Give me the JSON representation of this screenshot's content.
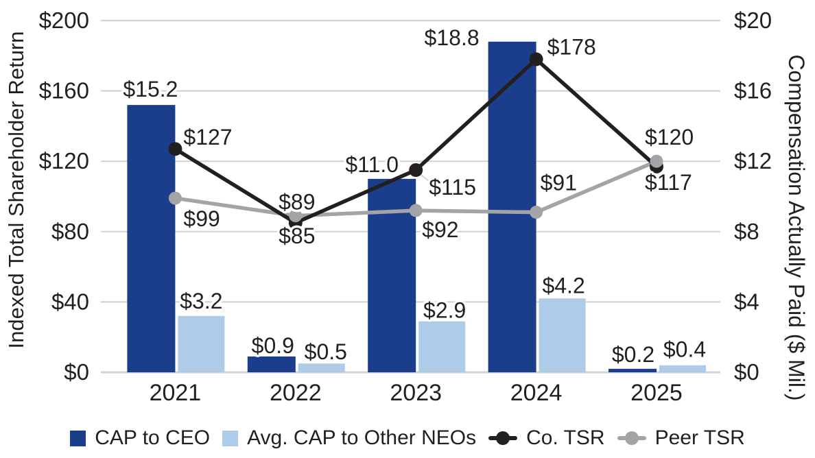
{
  "chart_data": {
    "type": "combo-bar-line",
    "categories": [
      "2021",
      "2022",
      "2023",
      "2024",
      "2025"
    ],
    "series": [
      {
        "name": "CAP to CEO",
        "kind": "bar",
        "axis": "right",
        "color": "#1B3E8C",
        "values": [
          15.2,
          0.9,
          11.0,
          18.8,
          0.2
        ],
        "labels": [
          "$15.2",
          "$0.9",
          "$11.0",
          "$18.8",
          "$0.2"
        ]
      },
      {
        "name": "Avg. CAP to Other NEOs",
        "kind": "bar",
        "axis": "right",
        "color": "#AECBE8",
        "values": [
          3.2,
          0.5,
          2.9,
          4.2,
          0.4
        ],
        "labels": [
          "$3.2",
          "$0.5",
          "$2.9",
          "$4.2",
          "$0.4"
        ]
      },
      {
        "name": "Co. TSR",
        "kind": "line",
        "axis": "left",
        "color": "#231F20",
        "values": [
          127,
          85,
          115,
          178,
          117
        ],
        "labels": [
          "$127",
          "$85",
          "$115",
          "$178",
          "$117"
        ]
      },
      {
        "name": "Peer TSR",
        "kind": "line",
        "axis": "left",
        "color": "#A2A4A7",
        "values": [
          99,
          89,
          92,
          91,
          120
        ],
        "labels": [
          "$99",
          "$89",
          "$92",
          "$91",
          "$120"
        ]
      }
    ],
    "left_axis": {
      "label": "Indexed Total Shareholder Return",
      "min": 0,
      "max": 200,
      "ticks": [
        "$0",
        "$40",
        "$80",
        "$120",
        "$160",
        "$200"
      ]
    },
    "right_axis": {
      "label": "Compensation Actually Paid ($ Mil.)",
      "min": 0,
      "max": 20,
      "ticks": [
        "$0",
        "$4",
        "$8",
        "$12",
        "$16",
        "$20"
      ]
    },
    "x_axis": {
      "labels": [
        "2021",
        "2022",
        "2023",
        "2024",
        "2025"
      ]
    },
    "grid": true,
    "legend_position": "bottom",
    "colors": {
      "grid": "#D2D4D4",
      "text": "#231F20",
      "background": "#FFFFFF"
    }
  }
}
